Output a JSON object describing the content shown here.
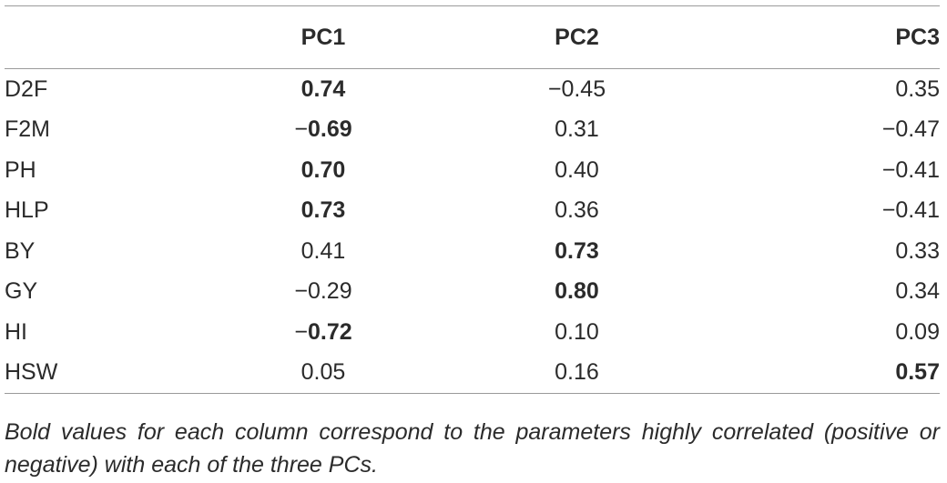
{
  "table": {
    "headers": [
      "",
      "PC1",
      "PC2",
      "PC3"
    ],
    "rows": [
      {
        "label": "D2F",
        "cells": [
          {
            "text": "0.74",
            "bold": true
          },
          {
            "text": "−0.45",
            "bold": false
          },
          {
            "text": "0.35",
            "bold": false
          }
        ]
      },
      {
        "label": "F2M",
        "cells": [
          {
            "text": "−0.69",
            "bold": true
          },
          {
            "text": "0.31",
            "bold": false
          },
          {
            "text": "−0.47",
            "bold": false
          }
        ]
      },
      {
        "label": "PH",
        "cells": [
          {
            "text": "0.70",
            "bold": true
          },
          {
            "text": "0.40",
            "bold": false
          },
          {
            "text": "−0.41",
            "bold": false
          }
        ]
      },
      {
        "label": "HLP",
        "cells": [
          {
            "text": "0.73",
            "bold": true
          },
          {
            "text": "0.36",
            "bold": false
          },
          {
            "text": "−0.41",
            "bold": false
          }
        ]
      },
      {
        "label": "BY",
        "cells": [
          {
            "text": "0.41",
            "bold": false
          },
          {
            "text": "0.73",
            "bold": true
          },
          {
            "text": "0.33",
            "bold": false
          }
        ]
      },
      {
        "label": "GY",
        "cells": [
          {
            "text": "−0.29",
            "bold": false
          },
          {
            "text": "0.80",
            "bold": true
          },
          {
            "text": "0.34",
            "bold": false
          }
        ]
      },
      {
        "label": "HI",
        "cells": [
          {
            "text": "−0.72",
            "bold": true
          },
          {
            "text": "0.10",
            "bold": false
          },
          {
            "text": "0.09",
            "bold": false
          }
        ]
      },
      {
        "label": "HSW",
        "cells": [
          {
            "text": "0.05",
            "bold": false
          },
          {
            "text": "0.16",
            "bold": false
          },
          {
            "text": "0.57",
            "bold": true
          }
        ]
      }
    ]
  },
  "caption": "Bold values for each column correspond to the parameters highly correlated (positive or negative) with each of the three PCs."
}
